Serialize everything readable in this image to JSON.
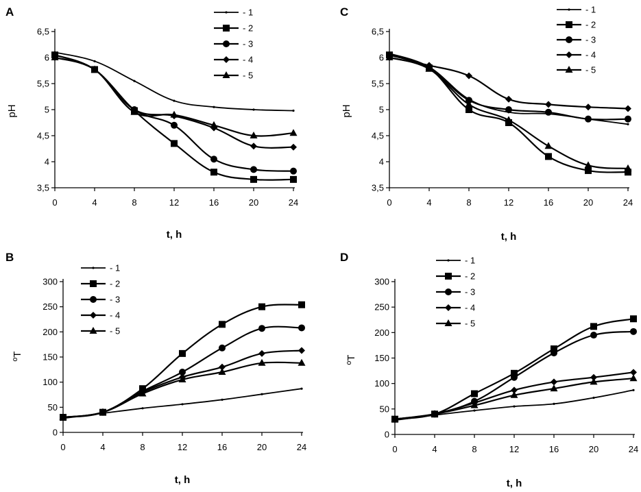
{
  "chart_data": [
    {
      "panel": "A",
      "type": "line",
      "x": [
        0,
        4,
        8,
        12,
        16,
        20,
        24
      ],
      "x_ticks": [
        "0",
        "4",
        "8",
        "12",
        "16",
        "20",
        "24"
      ],
      "y_ticks": [
        "3,5",
        "4",
        "4,5",
        "5",
        "5,5",
        "6",
        "6,5"
      ],
      "xlabel": "t, h",
      "ylabel": "pH",
      "ylim": [
        3.5,
        6.5
      ],
      "legend": [
        "- 1",
        "- 2",
        "- 3",
        "- 4",
        "- 5"
      ],
      "series": [
        {
          "name": "1",
          "marker": "dot",
          "values": [
            6.1,
            5.93,
            5.55,
            5.17,
            5.05,
            5.0,
            4.98
          ]
        },
        {
          "name": "2",
          "marker": "square",
          "values": [
            6.05,
            5.77,
            4.98,
            4.35,
            3.8,
            3.66,
            3.66
          ]
        },
        {
          "name": "3",
          "marker": "circle",
          "values": [
            6.05,
            5.77,
            5.0,
            4.7,
            4.05,
            3.85,
            3.82
          ]
        },
        {
          "name": "4",
          "marker": "diamond",
          "values": [
            6.0,
            5.77,
            5.0,
            4.88,
            4.65,
            4.3,
            4.28
          ]
        },
        {
          "name": "5",
          "marker": "triangle",
          "values": [
            6.0,
            5.77,
            4.95,
            4.9,
            4.7,
            4.5,
            4.55
          ]
        }
      ]
    },
    {
      "panel": "C",
      "type": "line",
      "x": [
        0,
        4,
        8,
        12,
        16,
        20,
        24
      ],
      "x_ticks": [
        "0",
        "4",
        "8",
        "12",
        "16",
        "20",
        "24"
      ],
      "y_ticks": [
        "3,5",
        "4",
        "4,5",
        "5",
        "5,5",
        "6",
        "6,5"
      ],
      "xlabel": "t, h",
      "ylabel": "pH",
      "ylim": [
        3.5,
        6.5
      ],
      "legend": [
        "- 1",
        "- 2",
        "- 3",
        "- 4",
        "- 5"
      ],
      "series": [
        {
          "name": "1",
          "marker": "dot",
          "values": [
            6.08,
            5.82,
            5.2,
            4.95,
            4.92,
            4.82,
            4.72
          ]
        },
        {
          "name": "2",
          "marker": "square",
          "values": [
            6.05,
            5.8,
            5.0,
            4.75,
            4.1,
            3.83,
            3.8
          ]
        },
        {
          "name": "3",
          "marker": "circle",
          "values": [
            6.05,
            5.8,
            5.18,
            5.0,
            4.95,
            4.82,
            4.82
          ]
        },
        {
          "name": "4",
          "marker": "diamond",
          "values": [
            6.0,
            5.85,
            5.65,
            5.2,
            5.1,
            5.05,
            5.02
          ]
        },
        {
          "name": "5",
          "marker": "triangle",
          "values": [
            6.0,
            5.78,
            5.1,
            4.8,
            4.3,
            3.93,
            3.87
          ]
        }
      ]
    },
    {
      "panel": "B",
      "type": "line",
      "x": [
        0,
        4,
        8,
        12,
        16,
        20,
        24
      ],
      "x_ticks": [
        "0",
        "4",
        "8",
        "12",
        "16",
        "20",
        "24"
      ],
      "y_ticks": [
        "0",
        "50",
        "100",
        "150",
        "200",
        "250",
        "300"
      ],
      "xlabel": "t, h",
      "ylabel": "ºT",
      "ylim": [
        0,
        300
      ],
      "legend": [
        "- 1",
        "- 2",
        "- 3",
        "- 4",
        "- 5"
      ],
      "series": [
        {
          "name": "1",
          "marker": "dot",
          "values": [
            28,
            38,
            48,
            56,
            65,
            76,
            87
          ]
        },
        {
          "name": "2",
          "marker": "square",
          "values": [
            30,
            40,
            87,
            157,
            215,
            250,
            254
          ]
        },
        {
          "name": "3",
          "marker": "circle",
          "values": [
            30,
            40,
            82,
            120,
            168,
            207,
            208
          ]
        },
        {
          "name": "4",
          "marker": "diamond",
          "values": [
            30,
            40,
            80,
            110,
            130,
            157,
            163
          ]
        },
        {
          "name": "5",
          "marker": "triangle",
          "values": [
            30,
            40,
            77,
            105,
            120,
            138,
            138
          ]
        }
      ]
    },
    {
      "panel": "D",
      "type": "line",
      "x": [
        0,
        4,
        8,
        12,
        16,
        20,
        24
      ],
      "x_ticks": [
        "0",
        "4",
        "8",
        "12",
        "16",
        "20",
        "24"
      ],
      "y_ticks": [
        "0",
        "50",
        "100",
        "150",
        "200",
        "250",
        "300"
      ],
      "xlabel": "t, h",
      "ylabel": "ºT",
      "ylim": [
        0,
        300
      ],
      "legend": [
        "- 1",
        "- 2",
        "- 3",
        "- 4",
        "- 5"
      ],
      "series": [
        {
          "name": "1",
          "marker": "dot",
          "values": [
            28,
            38,
            47,
            55,
            60,
            72,
            87
          ]
        },
        {
          "name": "2",
          "marker": "square",
          "values": [
            30,
            40,
            80,
            120,
            168,
            212,
            227
          ]
        },
        {
          "name": "3",
          "marker": "circle",
          "values": [
            30,
            40,
            65,
            112,
            160,
            195,
            202
          ]
        },
        {
          "name": "4",
          "marker": "diamond",
          "values": [
            30,
            40,
            62,
            87,
            103,
            112,
            122
          ]
        },
        {
          "name": "5",
          "marker": "triangle",
          "values": [
            30,
            40,
            57,
            77,
            90,
            103,
            110
          ]
        }
      ]
    }
  ]
}
